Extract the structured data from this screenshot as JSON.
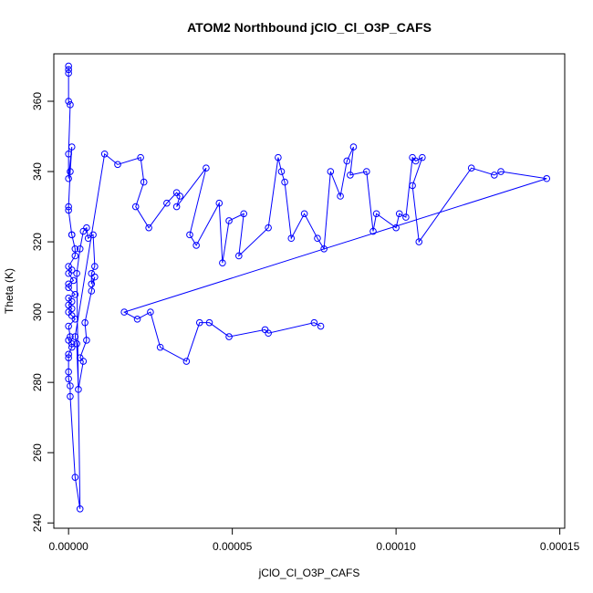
{
  "chart_data": {
    "type": "line",
    "title": "ATOM2 Northbound jClO_Cl_O3P_CAFS",
    "xlabel": "jClO_Cl_O3P_CAFS",
    "ylabel": "Theta (K)",
    "xlim": [
      -4.5e-06,
      0.0001515
    ],
    "ylim": [
      238.5,
      373.5
    ],
    "xticks": [
      0,
      5e-05,
      0.0001,
      0.00015
    ],
    "xtick_labels": [
      "0.00000",
      "0.00005",
      "0.00010",
      "0.00015"
    ],
    "yticks": [
      240,
      260,
      280,
      300,
      320,
      340,
      360
    ],
    "ytick_labels": [
      "240",
      "260",
      "280",
      "300",
      "320",
      "340",
      "360"
    ],
    "grid": false,
    "series": [
      {
        "color": "#0000ff",
        "marker": "open-circle",
        "x": [
          0.0,
          0.0,
          0.0,
          0.0,
          5e-07,
          0.0,
          0.0,
          1e-06,
          5e-07,
          0.0,
          0.0,
          1e-06,
          1e-06,
          2e-06,
          2e-06,
          0.0,
          1e-06,
          0.0,
          1.5e-06,
          0.0,
          0.0,
          2e-06,
          0.0,
          1e-06,
          0.0,
          1e-06,
          0.0,
          1e-06,
          2e-06,
          0.0,
          5e-07,
          0.0,
          1e-06,
          1e-06,
          0.0,
          0.0,
          0.0,
          0.0,
          5e-07,
          5e-07,
          2e-06,
          3.5e-06,
          2.5e-06,
          3.5e-06,
          4.5e-06,
          5.5e-06,
          6e-06,
          7.5e-06,
          8e-06,
          7e-06,
          7e-06,
          8e-06,
          7e-06,
          5e-06,
          5.5e-06,
          3.5e-06,
          4.5e-06,
          3e-06,
          2.5e-06,
          2e-06,
          1.1e-05,
          1.5e-05,
          2.2e-05,
          2.3e-05,
          2.05e-05,
          2.45e-05,
          3e-05,
          3.3e-05,
          3.4e-05,
          3.3e-05,
          4.2e-05,
          3.7e-05,
          3.9e-05,
          4.6e-05,
          4.7e-05,
          4.9e-05,
          5.35e-05,
          5.2e-05,
          6.1e-05,
          6.4e-05,
          6.5e-05,
          6.6e-05,
          6.8e-05,
          7.2e-05,
          7.6e-05,
          7.8e-05,
          8e-05,
          8.3e-05,
          8.5e-05,
          8.7e-05,
          8.6e-05,
          9.1e-05,
          9.3e-05,
          9.4e-05,
          0.0001,
          0.000101,
          0.000103,
          0.000105,
          0.000106,
          0.000108,
          0.000105,
          0.000107,
          0.000123,
          0.00013,
          0.000132,
          0.000146,
          1.7e-05,
          2.1e-05,
          2.5e-05,
          2.8e-05,
          3.6e-05,
          4e-05,
          4.3e-05,
          4.9e-05,
          6e-05,
          6.1e-05,
          7.5e-05,
          7.7e-05
        ],
        "y": [
          370,
          369,
          368,
          360,
          359,
          345,
          338,
          347,
          340,
          330,
          329,
          322,
          322,
          318,
          316,
          313,
          312,
          311,
          309,
          308,
          307,
          305,
          304,
          303,
          302,
          301,
          300,
          299,
          298,
          296,
          293,
          292,
          291,
          290,
          288,
          287,
          283,
          281,
          279,
          276,
          253,
          244,
          311,
          318,
          323,
          324,
          321,
          322,
          313,
          311,
          308,
          310,
          306,
          297,
          292,
          287,
          286,
          278,
          291,
          293,
          345,
          342,
          344,
          337,
          330,
          324,
          331,
          334,
          333,
          330,
          341,
          322,
          319,
          331,
          314,
          326,
          328,
          316,
          324,
          344,
          340,
          337,
          321,
          328,
          321,
          318,
          340,
          333,
          343,
          347,
          339,
          340,
          323,
          328,
          324,
          328,
          327,
          344,
          343,
          344,
          336,
          320,
          341,
          339,
          340,
          338,
          300,
          298,
          300,
          290,
          286,
          297,
          297,
          293,
          295,
          294,
          297,
          296
        ]
      }
    ]
  }
}
